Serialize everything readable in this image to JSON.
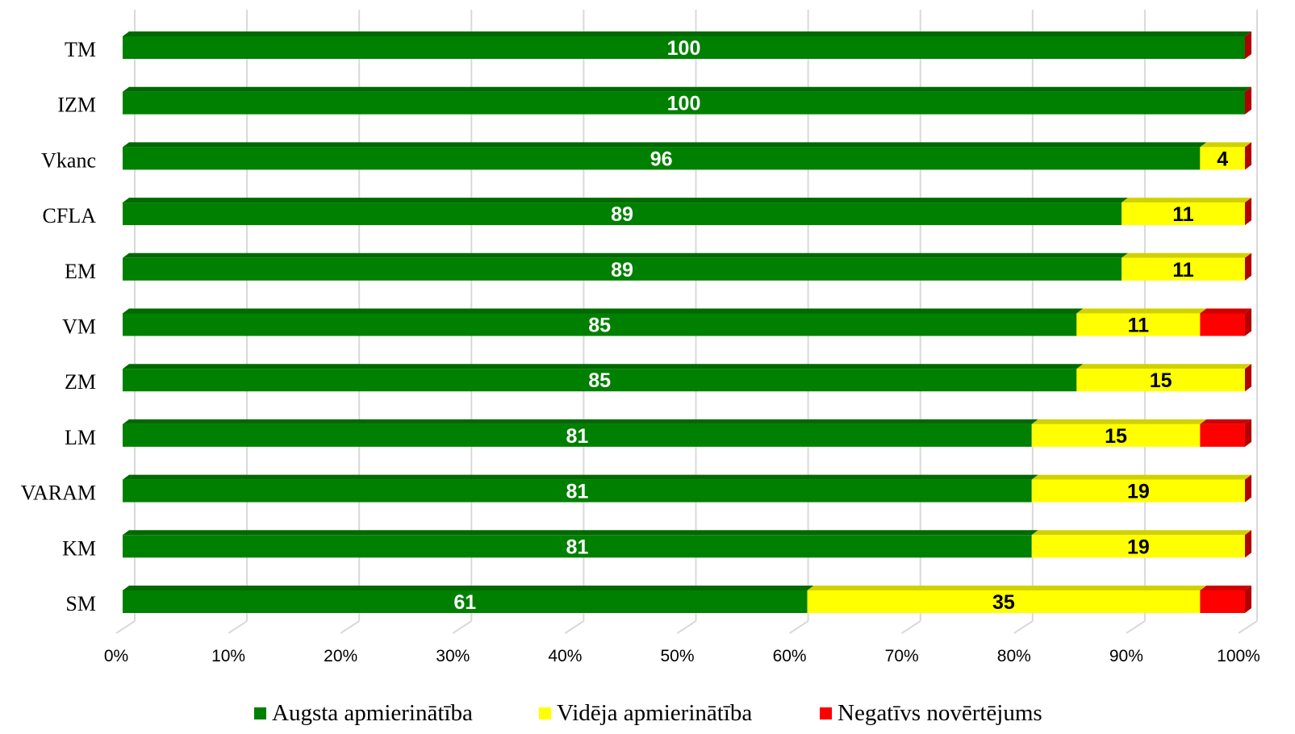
{
  "chart_data": {
    "type": "bar",
    "orientation": "horizontal",
    "stacked": true,
    "percent_stacked": true,
    "style_3d": true,
    "categories": [
      "TM",
      "IZM",
      "Vkanc",
      "CFLA",
      "EM",
      "VM",
      "ZM",
      "LM",
      "VARAM",
      "KM",
      "SM"
    ],
    "series": [
      {
        "name": "Augsta apmierinātība",
        "color": "#008000",
        "values": [
          100,
          100,
          96,
          89,
          89,
          85,
          85,
          81,
          81,
          81,
          61
        ],
        "labels": [
          "100",
          "100",
          "96",
          "89",
          "89",
          "85",
          "85",
          "81",
          "81",
          "81",
          "61"
        ]
      },
      {
        "name": "Vidēja apmierinātība",
        "color": "#ffff00",
        "values": [
          0,
          0,
          4,
          11,
          11,
          11,
          15,
          15,
          19,
          19,
          35
        ],
        "labels": [
          "",
          "",
          "4",
          "11",
          "11",
          "11",
          "15",
          "15",
          "19",
          "19",
          "35"
        ]
      },
      {
        "name": "Negatīvs novērtējums",
        "color": "#ff0000",
        "values": [
          0,
          0,
          0,
          0,
          0,
          4,
          0,
          4,
          0,
          0,
          4
        ],
        "labels": [
          "",
          "",
          "",
          "",
          "",
          "",
          "",
          "",
          "",
          "",
          ""
        ]
      }
    ],
    "x_ticks": [
      "0%",
      "10%",
      "20%",
      "30%",
      "40%",
      "50%",
      "60%",
      "70%",
      "80%",
      "90%",
      "100%"
    ],
    "xlim": [
      0,
      100
    ],
    "grid": "vertical",
    "legend_position": "bottom",
    "title": "",
    "xlabel": "",
    "ylabel": ""
  }
}
